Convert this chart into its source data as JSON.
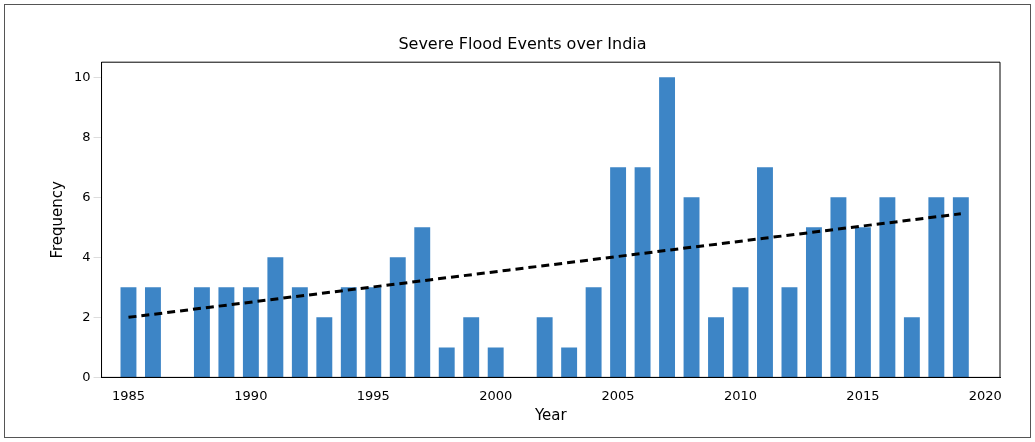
{
  "chart_data": {
    "type": "bar",
    "title": "Severe Flood Events over India",
    "xlabel": "Year",
    "ylabel": "Frequency",
    "x": [
      1985,
      1986,
      1987,
      1988,
      1989,
      1990,
      1991,
      1992,
      1993,
      1994,
      1995,
      1996,
      1997,
      1998,
      1999,
      2000,
      2001,
      2002,
      2003,
      2004,
      2005,
      2006,
      2007,
      2008,
      2009,
      2010,
      2011,
      2012,
      2013,
      2014,
      2015,
      2016,
      2017,
      2018,
      2019
    ],
    "series": [
      {
        "color": "#3d85c6",
        "values": [
          3,
          3,
          0,
          3,
          3,
          3,
          4,
          3,
          2,
          3,
          3,
          4,
          5,
          1,
          2,
          1,
          0,
          2,
          1,
          3,
          7,
          7,
          10,
          6,
          2,
          3,
          7,
          3,
          5,
          6,
          5,
          6,
          2,
          6,
          6
        ]
      },
      {
        "type": "line",
        "color": "#000000",
        "line_style": "dashed",
        "marker": "none",
        "x": [
          1985,
          2019
        ],
        "values": [
          2.0,
          5.45
        ]
      }
    ],
    "xlim": [
      1983.9,
      2020.6
    ],
    "xticks": [
      1985,
      1990,
      1995,
      2000,
      2005,
      2010,
      2015,
      2020
    ],
    "ylim": [
      0,
      10.5
    ],
    "yticks": [
      0,
      2,
      4,
      6,
      8,
      10
    ],
    "grid": false,
    "legend": false
  }
}
